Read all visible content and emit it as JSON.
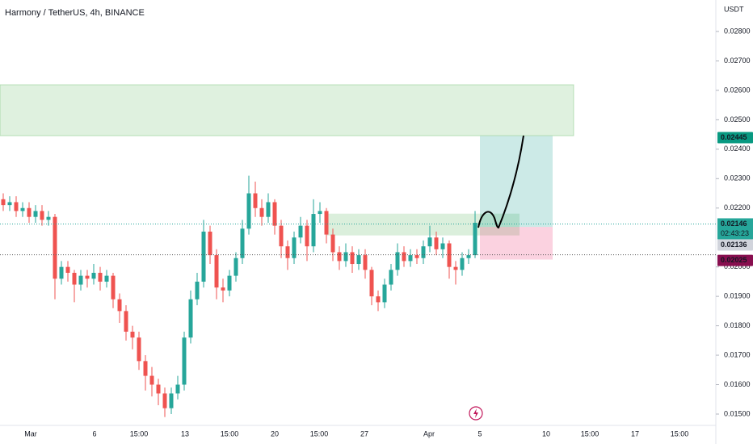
{
  "chart_data": {
    "type": "candlestick",
    "title": "Harmony / TetherUS, 4h, BINANCE",
    "currency": "USDT",
    "x_labels": [
      "Mar",
      "6",
      "15:00",
      "13",
      "15:00",
      "20",
      "15:00",
      "27",
      "Apr",
      "5",
      "10",
      "15:00",
      "17",
      "15:00"
    ],
    "up_color": "#26a69a",
    "down_color": "#ef5350",
    "open": [
      0.0223,
      0.0221,
      0.0222,
      0.0219,
      0.022,
      0.0217,
      0.0219,
      0.0216,
      0.0217,
      0.0196,
      0.02,
      0.0198,
      0.0194,
      0.0197,
      0.0196,
      0.0198,
      0.0195,
      0.0197,
      0.0189,
      0.0185,
      0.0178,
      0.0176,
      0.0168,
      0.0163,
      0.016,
      0.0157,
      0.0152,
      0.0157,
      0.016,
      0.0176,
      0.0189,
      0.0195,
      0.0212,
      0.0204,
      0.0193,
      0.0192,
      0.0197,
      0.0203,
      0.0213,
      0.0225,
      0.022,
      0.0217,
      0.0222,
      0.0214,
      0.0207,
      0.0203,
      0.021,
      0.0214,
      0.0207,
      0.0218,
      0.0219,
      0.0211,
      0.0205,
      0.0202,
      0.0205,
      0.0201,
      0.0204,
      0.0199,
      0.019,
      0.0188,
      0.0194,
      0.0199,
      0.0205,
      0.0202,
      0.0204,
      0.0203,
      0.0207,
      0.021,
      0.0206,
      0.0208,
      0.02,
      0.0199,
      0.0203,
      0.0204
    ],
    "high": [
      0.0225,
      0.0224,
      0.0224,
      0.0222,
      0.0222,
      0.0221,
      0.0221,
      0.0219,
      0.0218,
      0.0202,
      0.0202,
      0.0199,
      0.0199,
      0.0199,
      0.0201,
      0.02,
      0.0199,
      0.0198,
      0.0191,
      0.0187,
      0.018,
      0.0178,
      0.017,
      0.0166,
      0.0162,
      0.0159,
      0.0159,
      0.0163,
      0.0178,
      0.0192,
      0.0198,
      0.0216,
      0.0214,
      0.0206,
      0.0196,
      0.0199,
      0.0205,
      0.0216,
      0.0231,
      0.0229,
      0.0223,
      0.0225,
      0.0223,
      0.0216,
      0.0209,
      0.0212,
      0.0217,
      0.0216,
      0.0223,
      0.0222,
      0.022,
      0.0213,
      0.0207,
      0.0208,
      0.0207,
      0.0206,
      0.0206,
      0.02,
      0.0192,
      0.0196,
      0.0201,
      0.0208,
      0.0207,
      0.0206,
      0.0206,
      0.0209,
      0.0214,
      0.0212,
      0.021,
      0.0209,
      0.0202,
      0.0205,
      0.0206,
      0.0219
    ],
    "low": [
      0.0219,
      0.0219,
      0.0217,
      0.0217,
      0.0215,
      0.0215,
      0.0214,
      0.0214,
      0.0189,
      0.0194,
      0.0195,
      0.0188,
      0.0192,
      0.0193,
      0.0194,
      0.0192,
      0.0193,
      0.0186,
      0.0181,
      0.0175,
      0.0172,
      0.0165,
      0.0158,
      0.0156,
      0.0153,
      0.0149,
      0.015,
      0.0155,
      0.0158,
      0.0174,
      0.0187,
      0.0193,
      0.0201,
      0.0189,
      0.0188,
      0.019,
      0.0195,
      0.0201,
      0.0211,
      0.0217,
      0.0214,
      0.0215,
      0.0211,
      0.0203,
      0.0199,
      0.0201,
      0.0208,
      0.0202,
      0.0205,
      0.0215,
      0.0208,
      0.0202,
      0.0199,
      0.02,
      0.0198,
      0.0199,
      0.0196,
      0.0187,
      0.0185,
      0.0186,
      0.0192,
      0.0197,
      0.02,
      0.02,
      0.0201,
      0.0201,
      0.0205,
      0.0204,
      0.0203,
      0.0196,
      0.0194,
      0.0197,
      0.0201,
      0.0203
    ],
    "close": [
      0.0221,
      0.0222,
      0.0219,
      0.022,
      0.0217,
      0.0219,
      0.0216,
      0.0217,
      0.0196,
      0.02,
      0.0198,
      0.0194,
      0.0197,
      0.0196,
      0.0198,
      0.0195,
      0.0197,
      0.0189,
      0.0185,
      0.0178,
      0.0176,
      0.0168,
      0.0163,
      0.016,
      0.0157,
      0.0152,
      0.0157,
      0.016,
      0.0176,
      0.0189,
      0.0195,
      0.0212,
      0.0204,
      0.0193,
      0.0192,
      0.0197,
      0.0203,
      0.0213,
      0.0225,
      0.022,
      0.0217,
      0.0222,
      0.0214,
      0.0207,
      0.0203,
      0.021,
      0.0214,
      0.0207,
      0.0218,
      0.0219,
      0.0211,
      0.0205,
      0.0202,
      0.0205,
      0.0201,
      0.0204,
      0.0199,
      0.019,
      0.0188,
      0.0194,
      0.0199,
      0.0205,
      0.0202,
      0.0204,
      0.0203,
      0.0207,
      0.021,
      0.0206,
      0.0208,
      0.02,
      0.0199,
      0.0203,
      0.0204,
      0.0215
    ],
    "ylim": [
      0.01467,
      0.02907
    ],
    "yticks": [
      {
        "value": 0.015,
        "label": "0.01500"
      },
      {
        "value": 0.016,
        "label": "0.01600"
      },
      {
        "value": 0.017,
        "label": "0.01700"
      },
      {
        "value": 0.018,
        "label": "0.01800"
      },
      {
        "value": 0.019,
        "label": "0.01900"
      },
      {
        "value": 0.02,
        "label": "0.02000"
      },
      {
        "value": 0.022,
        "label": "0.02200"
      },
      {
        "value": 0.023,
        "label": "0.02300"
      },
      {
        "value": 0.024,
        "label": "0.02400"
      },
      {
        "value": 0.025,
        "label": "0.02500"
      },
      {
        "value": 0.026,
        "label": "0.02600"
      },
      {
        "value": 0.027,
        "label": "0.02700"
      },
      {
        "value": 0.028,
        "label": "0.02800"
      }
    ],
    "target_zone": [
      0.02619,
      0.02446
    ],
    "range_zone": [
      0.02181,
      0.02107
    ],
    "position": {
      "target": 0.02445,
      "entry": 0.02136,
      "stop": 0.02025
    },
    "last_price": 0.02146,
    "countdown": "02:43:23"
  }
}
